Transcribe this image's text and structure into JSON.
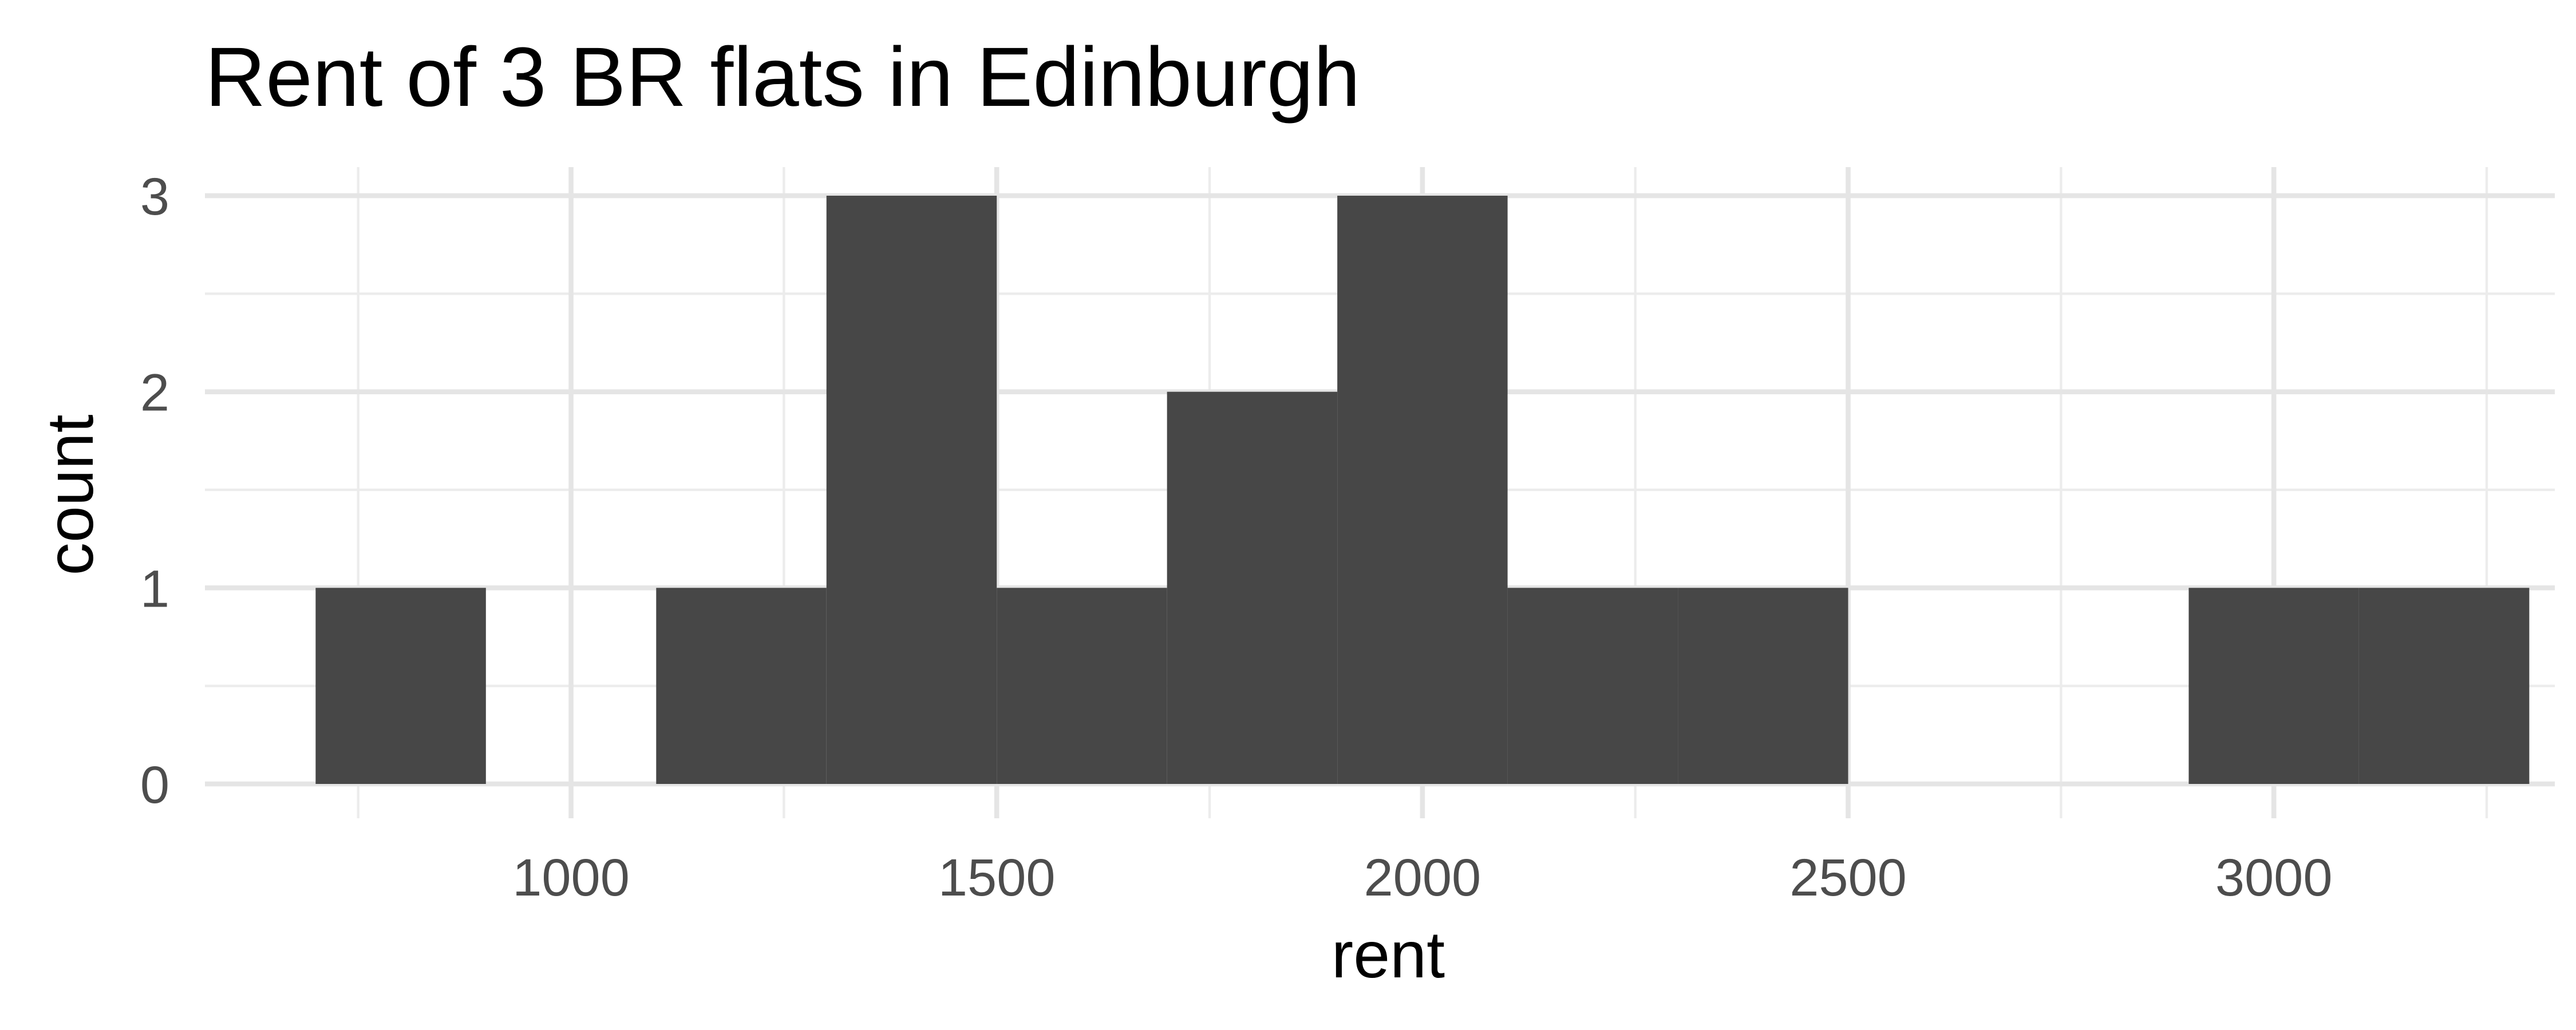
{
  "chart_data": {
    "type": "bar",
    "title": "Rent of 3 BR flats in Edinburgh",
    "xlabel": "rent",
    "ylabel": "count",
    "bin_width": 200,
    "bins": [
      {
        "from": 700,
        "to": 900,
        "count": 1
      },
      {
        "from": 900,
        "to": 1100,
        "count": 0
      },
      {
        "from": 1100,
        "to": 1300,
        "count": 1
      },
      {
        "from": 1300,
        "to": 1500,
        "count": 3
      },
      {
        "from": 1500,
        "to": 1700,
        "count": 1
      },
      {
        "from": 1700,
        "to": 1900,
        "count": 2
      },
      {
        "from": 1900,
        "to": 2100,
        "count": 3
      },
      {
        "from": 2100,
        "to": 2300,
        "count": 1
      },
      {
        "from": 2300,
        "to": 2500,
        "count": 1
      },
      {
        "from": 2500,
        "to": 2700,
        "count": 0
      },
      {
        "from": 2700,
        "to": 2900,
        "count": 0
      },
      {
        "from": 2900,
        "to": 3100,
        "count": 1
      },
      {
        "from": 3100,
        "to": 3300,
        "count": 1
      }
    ],
    "xlim": [
      570,
      3330
    ],
    "ylim": [
      0,
      3.0
    ],
    "x_ticks": [
      1000,
      1500,
      2000,
      2500,
      3000
    ],
    "x_tick_labels": [
      "1000",
      "1500",
      "2000",
      "2500",
      "3000"
    ],
    "x_minor_ticks": [
      750,
      1250,
      1750,
      2250,
      2750,
      3250
    ],
    "y_ticks": [
      0,
      1,
      2,
      3
    ],
    "y_tick_labels": [
      "0",
      "1",
      "2",
      "3"
    ],
    "y_minor_ticks": [
      0.5,
      1.5,
      2.5
    ],
    "bar_color": "#474747",
    "grid": true,
    "legend": "none"
  }
}
